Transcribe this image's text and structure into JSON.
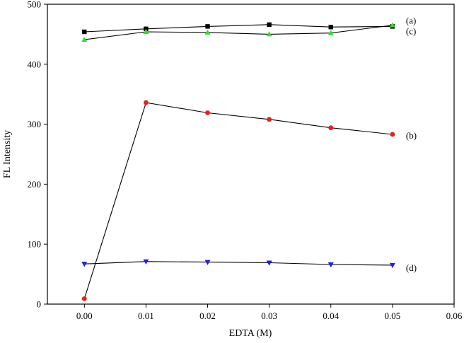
{
  "chart_data": {
    "type": "line",
    "xlabel": "EDTA (M)",
    "ylabel": "FL Intensity",
    "xlim": [
      -0.006,
      0.06
    ],
    "ylim": [
      0,
      500
    ],
    "xticks": [
      0.0,
      0.01,
      0.02,
      0.03,
      0.04,
      0.05,
      0.06
    ],
    "xtick_labels": [
      "0.00",
      "0.01",
      "0.02",
      "0.03",
      "0.04",
      "0.05",
      "0.06"
    ],
    "yticks": [
      0,
      100,
      200,
      300,
      400,
      500
    ],
    "ytick_labels": [
      "0",
      "100",
      "200",
      "300",
      "400",
      "500"
    ],
    "grid": false,
    "x": [
      0.0,
      0.01,
      0.02,
      0.03,
      0.04,
      0.05
    ],
    "series": [
      {
        "name": "(a)",
        "marker": "square",
        "color": "#000000",
        "values": [
          454,
          459,
          463,
          466,
          462,
          463
        ]
      },
      {
        "name": "(c)",
        "marker": "triangle-up",
        "color": "#33dd33",
        "values": [
          441,
          454,
          453,
          450,
          452,
          465
        ]
      },
      {
        "name": "(b)",
        "marker": "circle",
        "color": "#e8201a",
        "values": [
          9,
          336,
          319,
          308,
          294,
          283
        ]
      },
      {
        "name": "(d)",
        "marker": "triangle-down",
        "color": "#1a22e0",
        "values": [
          67,
          71,
          70,
          69,
          66,
          65
        ]
      }
    ]
  }
}
